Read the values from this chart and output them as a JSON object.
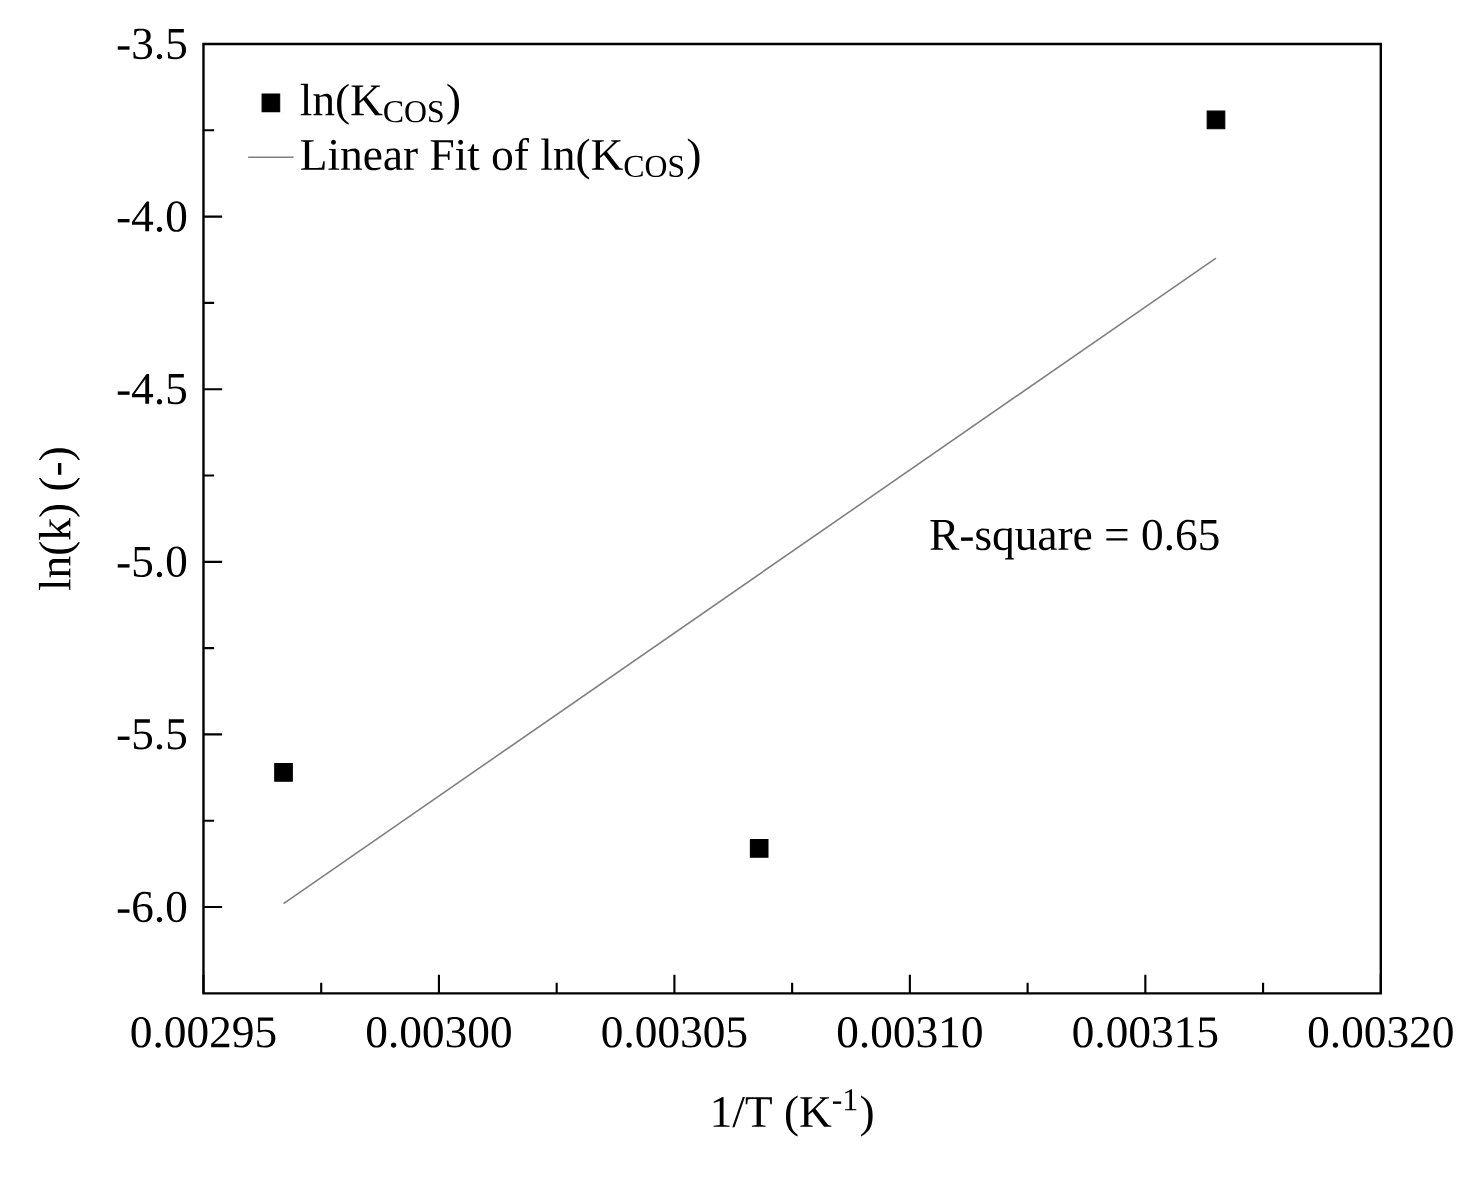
{
  "chart_data": {
    "type": "scatter",
    "xlabel": "1/T (K$^{-1}$)",
    "ylabel": "ln(k) (-)",
    "xlim": [
      0.00295,
      0.0032
    ],
    "ylim": [
      -6.25,
      -3.5
    ],
    "xticks": [
      0.00295,
      {
        "value": 0.002975,
        "label": null
      },
      {
        "value": 0.003,
        "label": "0.00300"
      },
      {
        "value": 0.003025,
        "label": null
      },
      0.00305,
      {
        "value": 0.003075,
        "label": null
      },
      {
        "value": 0.0031,
        "label": "0.00310"
      },
      {
        "value": 0.003125,
        "label": null
      },
      0.00315,
      {
        "value": 0.003175,
        "label": null
      },
      {
        "value": 0.0032,
        "label": "0.00320"
      }
    ],
    "yticks": [
      {
        "value": -6,
        "label": "-6.0"
      },
      {
        "value": -5.75,
        "label": null
      },
      -5.5,
      {
        "value": -5.25,
        "label": null
      },
      {
        "value": -5,
        "label": "-5.0"
      },
      {
        "value": -4.75,
        "label": null
      },
      -4.5,
      {
        "value": -4.25,
        "label": null
      },
      {
        "value": -4,
        "label": "-4.0"
      },
      {
        "value": -3.75,
        "label": null
      },
      -3.5
    ],
    "series": [
      {
        "name": "ln(K$_{COS}$)",
        "marker": "square",
        "color": "#000000",
        "x": [
          0.002967,
          0.003068,
          0.003165
        ],
        "values": [
          -5.61,
          -5.83,
          -3.72
        ]
      },
      {
        "name": "Linear Fit of ln(K$_{COS}$)",
        "type": "line",
        "marker": "none",
        "line_style": "solid",
        "color": "#808080",
        "x": [
          0.002967,
          0.003165
        ],
        "values": [
          -5.99,
          -4.12
        ]
      }
    ],
    "annotations": [
      "R-square = 0.65"
    ],
    "legend": "top left",
    "grid": false
  }
}
